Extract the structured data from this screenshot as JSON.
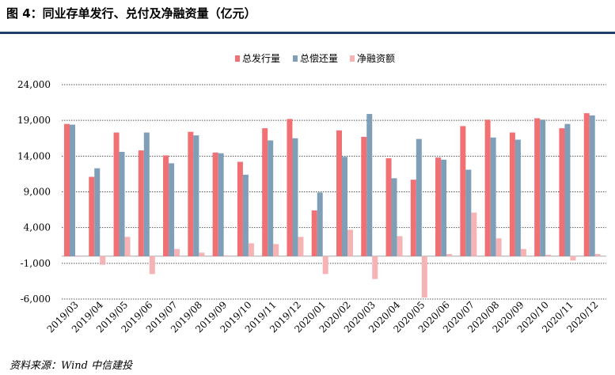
{
  "header": {
    "title": "图 4：同业存单发行、兑付及净融资量（亿元）"
  },
  "footer": {
    "source": "资料来源：Wind 中信建投"
  },
  "colors": {
    "issue": "#f07074",
    "redeem": "#7f9fb8",
    "net": "#f6b3b5",
    "title_rule": "#1f3f6b"
  },
  "chart_data": {
    "type": "bar",
    "title": "同业存单发行、兑付及净融资量（亿元）",
    "xlabel": "",
    "ylabel": "",
    "ylim": [
      -6000,
      24000
    ],
    "yticks": [
      -6000,
      -1000,
      4000,
      9000,
      14000,
      19000,
      24000
    ],
    "ytick_labels": [
      "-6,000",
      "-1,000",
      "4,000",
      "9,000",
      "14,000",
      "19,000",
      "24,000"
    ],
    "grid": true,
    "legend_position": "top-center",
    "categories": [
      "2019/03",
      "2019/04",
      "2019/05",
      "2019/06",
      "2019/07",
      "2019/08",
      "2019/09",
      "2019/10",
      "2019/11",
      "2019/12",
      "2020/01",
      "2020/02",
      "2020/03",
      "2020/04",
      "2020/05",
      "2020/06",
      "2020/07",
      "2020/08",
      "2020/09",
      "2020/10",
      "2020/11",
      "2020/12"
    ],
    "series": [
      {
        "name": "总发行量",
        "values": [
          18500,
          11100,
          17300,
          14800,
          14100,
          17400,
          14500,
          13200,
          17900,
          19200,
          6400,
          17600,
          16700,
          13700,
          10700,
          13800,
          18200,
          19100,
          17300,
          19300,
          17900,
          20000
        ]
      },
      {
        "name": "总偿还量",
        "values": [
          18400,
          12300,
          14600,
          17300,
          13000,
          16900,
          14400,
          11400,
          16200,
          16500,
          8900,
          13900,
          19900,
          10900,
          16400,
          13500,
          12100,
          16600,
          16300,
          19100,
          18500,
          19700
        ]
      },
      {
        "name": "净融资额",
        "values": [
          100,
          -1200,
          2700,
          -2500,
          1000,
          500,
          100,
          1800,
          1700,
          2700,
          -2500,
          3700,
          -3200,
          2800,
          -5800,
          300,
          6100,
          2500,
          1000,
          200,
          -600,
          300
        ]
      }
    ]
  }
}
